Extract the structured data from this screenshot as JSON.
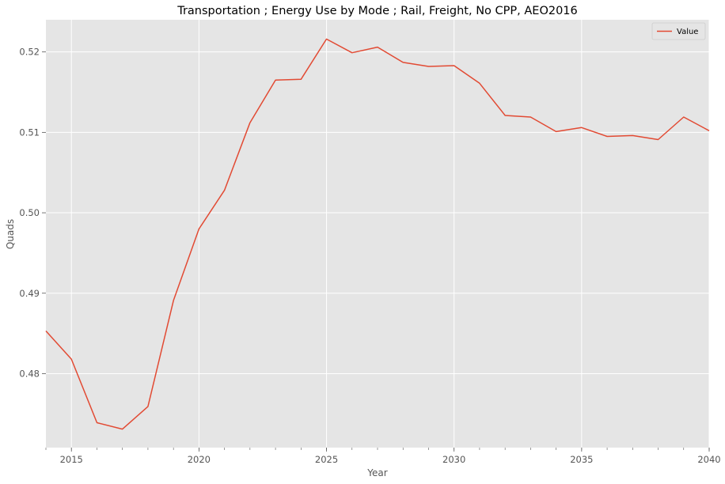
{
  "chart_data": {
    "type": "line",
    "title": "Transportation ; Energy Use by Mode ; Rail, Freight, No CPP, AEO2016",
    "xlabel": "Year",
    "ylabel": "Quads",
    "xlim": [
      2014,
      2040
    ],
    "ylim": [
      0.4708,
      0.524
    ],
    "x_ticks": [
      "2015",
      "2020",
      "2025",
      "2030",
      "2035",
      "2040"
    ],
    "y_ticks": [
      "0.48",
      "0.49",
      "0.50",
      "0.51",
      "0.52"
    ],
    "grid": true,
    "legend": "top-right",
    "series": [
      {
        "name": "Value",
        "color": "#e24a33",
        "x": [
          2014,
          2015,
          2016,
          2017,
          2018,
          2019,
          2020,
          2021,
          2022,
          2023,
          2024,
          2025,
          2026,
          2027,
          2028,
          2029,
          2030,
          2031,
          2032,
          2033,
          2034,
          2035,
          2036,
          2037,
          2038,
          2039,
          2040
        ],
        "values": [
          0.4853,
          0.4818,
          0.4739,
          0.4731,
          0.4759,
          0.4891,
          0.498,
          0.5028,
          0.5112,
          0.5165,
          0.5166,
          0.5216,
          0.5199,
          0.5206,
          0.5187,
          0.5182,
          0.5183,
          0.5161,
          0.5121,
          0.5119,
          0.5101,
          0.5106,
          0.5095,
          0.5096,
          0.5091,
          0.5119,
          0.5102
        ]
      }
    ]
  }
}
